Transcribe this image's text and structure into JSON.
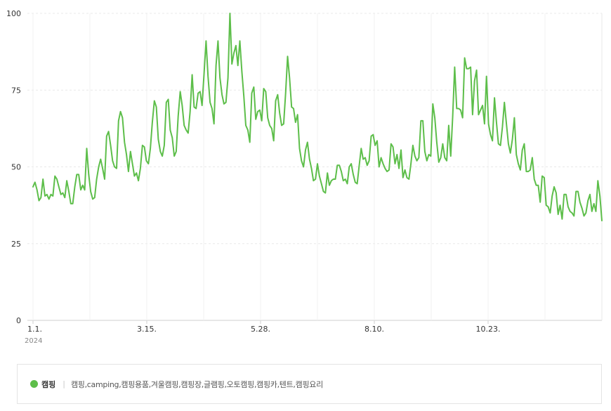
{
  "chart_data": {
    "type": "line",
    "yticks": [
      0,
      25,
      50,
      75,
      100
    ],
    "ylim": [
      0,
      100
    ],
    "xtick_labels": [
      "1.1.",
      "3.15.",
      "5.28.",
      "8.10.",
      "10.23."
    ],
    "xtick_sublabel": "2024",
    "grid": true,
    "series": [
      {
        "name": "캠핑",
        "keywords": "캠핑,camping,캠핑용품,겨울캠핑,캠핑장,글램핑,오토캠핑,캠핑카,텐트,캠핑요리",
        "color": "#5dbe4a",
        "values": [
          43.5,
          45,
          42.5,
          39,
          40,
          46,
          40.5,
          41,
          39.5,
          41,
          40.5,
          47,
          46,
          43.5,
          41,
          41.5,
          40,
          45.5,
          42,
          38,
          38,
          43.5,
          47.5,
          47.5,
          42.5,
          44,
          42.5,
          56,
          47.5,
          42,
          39.5,
          40,
          46,
          50,
          52.5,
          49.5,
          46,
          60,
          61.5,
          57,
          52,
          50,
          49.5,
          65,
          68,
          66,
          58,
          54,
          48.5,
          55,
          51,
          47,
          48,
          45.5,
          49.5,
          57,
          56.5,
          52,
          51,
          56,
          64.5,
          71.5,
          69.5,
          59,
          55,
          53.5,
          57,
          71,
          72,
          62,
          59.5,
          53.5,
          55,
          66.5,
          74.5,
          70,
          63.5,
          62,
          61,
          68,
          80,
          69.5,
          69,
          74,
          74.5,
          70,
          80.5,
          91,
          79.5,
          71,
          69,
          64,
          83,
          91,
          79,
          73.5,
          70.5,
          71,
          79,
          100,
          83.5,
          87,
          89.5,
          83,
          91,
          81,
          73,
          63.5,
          62,
          58,
          74,
          76,
          65.5,
          68,
          68.5,
          65,
          75.5,
          74.5,
          66,
          63.5,
          62.5,
          58.5,
          71.5,
          73.5,
          67.5,
          63.5,
          64,
          74,
          86,
          79,
          69.5,
          69,
          64.5,
          67,
          56,
          52,
          50,
          55.5,
          58,
          52.5,
          49.5,
          45.5,
          46,
          51,
          47,
          44.5,
          42,
          41.5,
          48,
          44,
          45.5,
          46,
          46,
          50.5,
          50.5,
          48.5,
          45.5,
          46,
          44.5,
          50,
          51,
          47.5,
          45,
          44.5,
          50.5,
          56,
          52.5,
          53,
          50.5,
          52,
          60,
          60.5,
          57,
          58.5,
          50,
          53,
          51,
          49.5,
          48.5,
          49,
          57.5,
          56.5,
          51,
          54,
          49.5,
          55.5,
          46.5,
          49,
          46.5,
          46,
          51,
          57,
          53.5,
          52,
          53,
          65,
          65,
          55,
          52,
          54,
          53.5,
          70.5,
          66,
          58,
          51.5,
          53,
          57.5,
          53,
          52,
          63.5,
          53.5,
          66.5,
          82.5,
          69,
          69,
          68.5,
          66,
          85.5,
          82,
          82,
          82.5,
          67,
          78,
          81.5,
          67,
          68.5,
          70,
          64,
          79.5,
          64,
          60.5,
          58.5,
          72.5,
          64.5,
          57.5,
          57,
          63,
          71,
          64,
          57.5,
          54.5,
          59,
          66,
          54,
          51,
          49,
          55.5,
          57.5,
          48.5,
          48.5,
          49,
          53,
          46,
          44,
          44,
          38.5,
          47,
          46.5,
          37.5,
          37,
          35,
          40.5,
          43.5,
          41.5,
          34.5,
          37.5,
          33,
          41,
          41,
          37,
          35.5,
          35,
          34,
          42,
          42,
          38.5,
          36.5,
          34,
          35,
          39,
          41,
          35.5,
          38,
          35.5,
          45.5,
          40.5,
          32.5
        ]
      }
    ]
  }
}
